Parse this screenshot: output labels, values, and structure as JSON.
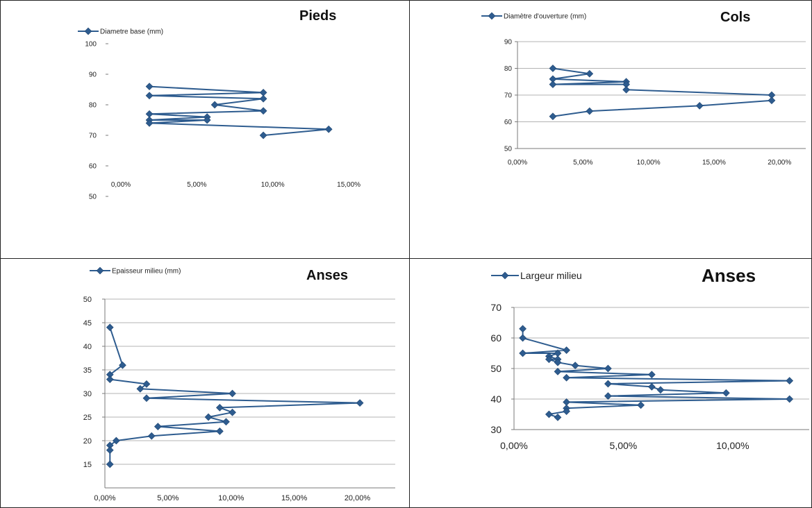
{
  "colors": {
    "series": "#2e5c8f",
    "marker": "#2e5c8f"
  },
  "chart_data": [
    {
      "type": "line",
      "title": "Pieds",
      "series": [
        {
          "name": "Diametre base (mm)",
          "points": [
            {
              "x": 2.7,
              "y": 86
            },
            {
              "x": 10.2,
              "y": 84
            },
            {
              "x": 2.7,
              "y": 83
            },
            {
              "x": 10.2,
              "y": 82
            },
            {
              "x": 7.0,
              "y": 80
            },
            {
              "x": 10.2,
              "y": 78
            },
            {
              "x": 2.7,
              "y": 77
            },
            {
              "x": 6.5,
              "y": 76
            },
            {
              "x": 2.7,
              "y": 75
            },
            {
              "x": 6.5,
              "y": 75
            },
            {
              "x": 2.7,
              "y": 74
            },
            {
              "x": 14.5,
              "y": 72
            },
            {
              "x": 10.2,
              "y": 70
            }
          ]
        }
      ],
      "x_tick_labels": [
        "0,00%",
        "5,00%",
        "10,00%",
        "15,00%"
      ],
      "y_tick_labels": [
        "50",
        "60",
        "70",
        "80",
        "90",
        "100"
      ],
      "xlim": [
        0,
        16
      ],
      "ylim": [
        50,
        100
      ],
      "grid": false,
      "legend_position": "top-left"
    },
    {
      "type": "line",
      "title": "Cols",
      "series": [
        {
          "name": "Diamètre d'ouverture (mm)",
          "points": [
            {
              "x": 2.7,
              "y": 80
            },
            {
              "x": 5.5,
              "y": 78
            },
            {
              "x": 2.7,
              "y": 76
            },
            {
              "x": 8.3,
              "y": 75
            },
            {
              "x": 2.7,
              "y": 74
            },
            {
              "x": 8.3,
              "y": 74
            },
            {
              "x": 8.3,
              "y": 72
            },
            {
              "x": 19.4,
              "y": 70
            },
            {
              "x": 19.4,
              "y": 68
            },
            {
              "x": 13.9,
              "y": 66
            },
            {
              "x": 5.5,
              "y": 64
            },
            {
              "x": 2.7,
              "y": 62
            }
          ]
        }
      ],
      "x_tick_labels": [
        "0,00%",
        "5,00%",
        "10,00%",
        "15,00%",
        "20,00%"
      ],
      "y_tick_labels": [
        "50",
        "60",
        "70",
        "80",
        "90"
      ],
      "xlim": [
        0,
        22
      ],
      "ylim": [
        50,
        90
      ],
      "grid": true,
      "legend_position": "top-left"
    },
    {
      "type": "line",
      "title": "Anses",
      "series": [
        {
          "name": "Epaisseur milieu (mm)",
          "points": [
            {
              "x": 0.4,
              "y": 44
            },
            {
              "x": 1.4,
              "y": 36
            },
            {
              "x": 0.4,
              "y": 34
            },
            {
              "x": 0.4,
              "y": 33
            },
            {
              "x": 3.3,
              "y": 32
            },
            {
              "x": 2.8,
              "y": 31
            },
            {
              "x": 10.1,
              "y": 30
            },
            {
              "x": 3.3,
              "y": 29
            },
            {
              "x": 20.2,
              "y": 28
            },
            {
              "x": 9.1,
              "y": 27
            },
            {
              "x": 10.1,
              "y": 26
            },
            {
              "x": 8.2,
              "y": 25
            },
            {
              "x": 9.6,
              "y": 24
            },
            {
              "x": 4.2,
              "y": 23
            },
            {
              "x": 9.1,
              "y": 22
            },
            {
              "x": 3.7,
              "y": 21
            },
            {
              "x": 0.9,
              "y": 20
            },
            {
              "x": 0.4,
              "y": 19
            },
            {
              "x": 0.4,
              "y": 18
            },
            {
              "x": 0.4,
              "y": 15
            }
          ]
        }
      ],
      "x_tick_labels": [
        "0,00%",
        "5,00%",
        "10,00%",
        "15,00%",
        "20,00%"
      ],
      "y_tick_labels": [
        "15",
        "20",
        "25",
        "30",
        "35",
        "40",
        "45",
        "50"
      ],
      "xlim": [
        0,
        23
      ],
      "ylim": [
        10,
        50
      ],
      "grid": true,
      "legend_position": "top-left"
    },
    {
      "type": "line",
      "title": "Anses",
      "series": [
        {
          "name": "Largeur milieu",
          "points": [
            {
              "x": 0.4,
              "y": 63
            },
            {
              "x": 0.4,
              "y": 60
            },
            {
              "x": 2.4,
              "y": 56
            },
            {
              "x": 0.4,
              "y": 55
            },
            {
              "x": 2.0,
              "y": 55
            },
            {
              "x": 1.6,
              "y": 54
            },
            {
              "x": 2.0,
              "y": 53
            },
            {
              "x": 1.6,
              "y": 53
            },
            {
              "x": 2.0,
              "y": 52
            },
            {
              "x": 2.8,
              "y": 51
            },
            {
              "x": 4.3,
              "y": 50
            },
            {
              "x": 2.0,
              "y": 49
            },
            {
              "x": 6.3,
              "y": 48
            },
            {
              "x": 2.4,
              "y": 47
            },
            {
              "x": 12.6,
              "y": 46
            },
            {
              "x": 4.3,
              "y": 45
            },
            {
              "x": 6.3,
              "y": 44
            },
            {
              "x": 6.7,
              "y": 43
            },
            {
              "x": 9.7,
              "y": 42
            },
            {
              "x": 4.3,
              "y": 41
            },
            {
              "x": 12.6,
              "y": 40
            },
            {
              "x": 2.4,
              "y": 39
            },
            {
              "x": 5.8,
              "y": 38
            },
            {
              "x": 2.4,
              "y": 37
            },
            {
              "x": 2.4,
              "y": 36
            },
            {
              "x": 1.6,
              "y": 35
            },
            {
              "x": 2.0,
              "y": 34
            }
          ]
        }
      ],
      "x_tick_labels": [
        "0,00%",
        "5,00%",
        "10,00%"
      ],
      "y_tick_labels": [
        "30",
        "40",
        "50",
        "60",
        "70"
      ],
      "xlim": [
        0,
        13.5
      ],
      "ylim": [
        30,
        70
      ],
      "grid": true,
      "legend_position": "top-left"
    }
  ]
}
